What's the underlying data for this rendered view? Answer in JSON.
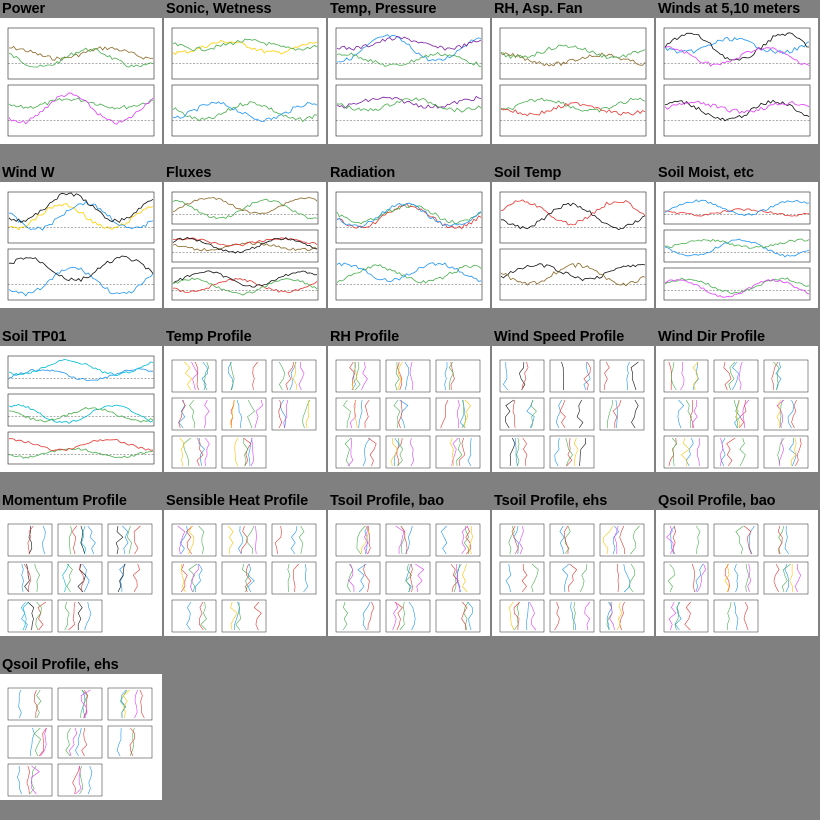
{
  "tiles": [
    {
      "title": "Power",
      "kind": "ts",
      "panels": 2,
      "colors": [
        "#8a6a2a",
        "#4caf50",
        "#e040fb",
        "#2196f3"
      ]
    },
    {
      "title": "Sonic, Wetness",
      "kind": "ts",
      "panels": 2,
      "colors": [
        "#ffd000",
        "#4caf50",
        "#2196f3",
        "#e53935"
      ]
    },
    {
      "title": "Temp, Pressure",
      "kind": "ts",
      "panels": 2,
      "colors": [
        "#2196f3",
        "#7b1fa2",
        "#4caf50",
        "#e53935"
      ]
    },
    {
      "title": "RH, Asp. Fan",
      "kind": "ts",
      "panels": 2,
      "colors": [
        "#8a6a2a",
        "#4caf50",
        "#e53935",
        "#2196f3"
      ]
    },
    {
      "title": "Winds at 5,10 meters",
      "kind": "ts",
      "panels": 2,
      "colors": [
        "#2196f3",
        "#111111",
        "#e040fb",
        "#00bcd4"
      ]
    },
    {
      "title": "Wind W",
      "kind": "ts",
      "panels": 2,
      "colors": [
        "#ffd000",
        "#2196f3",
        "#111111",
        "#e53935"
      ]
    },
    {
      "title": "Fluxes",
      "kind": "ts",
      "panels": 3,
      "colors": [
        "#4caf50",
        "#8a6a2a",
        "#e53935",
        "#111111"
      ]
    },
    {
      "title": "Radiation",
      "kind": "ts",
      "panels": 2,
      "colors": [
        "#e53935",
        "#4caf50",
        "#2196f3",
        "#8a6a2a"
      ]
    },
    {
      "title": "Soil Temp",
      "kind": "ts",
      "panels": 2,
      "colors": [
        "#e53935",
        "#111111",
        "#8a6a2a",
        "#00bcd4"
      ]
    },
    {
      "title": "Soil Moist, etc",
      "kind": "ts",
      "panels": 3,
      "colors": [
        "#e53935",
        "#2196f3",
        "#4caf50",
        "#e040fb"
      ]
    },
    {
      "title": "Soil TP01",
      "kind": "ts",
      "panels": 3,
      "colors": [
        "#2196f3",
        "#00bcd4",
        "#4caf50",
        "#e53935"
      ]
    },
    {
      "title": "Temp Profile",
      "kind": "profile",
      "colors": [
        "#2196f3",
        "#e53935",
        "#4caf50",
        "#e040fb",
        "#ffc107"
      ]
    },
    {
      "title": "RH Profile",
      "kind": "profile",
      "colors": [
        "#2196f3",
        "#e53935",
        "#4caf50",
        "#e040fb",
        "#ffc107"
      ]
    },
    {
      "title": "Wind Speed Profile",
      "kind": "profile",
      "colors": [
        "#111111",
        "#2196f3",
        "#e53935",
        "#4caf50",
        "#ffc107"
      ]
    },
    {
      "title": "Wind Dir Profile",
      "kind": "profile",
      "colors": [
        "#e53935",
        "#2196f3",
        "#4caf50",
        "#e040fb",
        "#ffc107"
      ]
    },
    {
      "title": "Momentum Profile",
      "kind": "profile",
      "colors": [
        "#2196f3",
        "#111111",
        "#e53935",
        "#4caf50",
        "#00bcd4"
      ]
    },
    {
      "title": "Sensible Heat Profile",
      "kind": "profile",
      "colors": [
        "#e53935",
        "#2196f3",
        "#4caf50",
        "#ffc107",
        "#e040fb"
      ]
    },
    {
      "title": "Tsoil Profile, bao",
      "kind": "profile",
      "colors": [
        "#2196f3",
        "#4caf50",
        "#e53935",
        "#e040fb",
        "#ffc107"
      ]
    },
    {
      "title": "Tsoil Profile, ehs",
      "kind": "profile",
      "colors": [
        "#2196f3",
        "#4caf50",
        "#e53935",
        "#e040fb",
        "#ffc107"
      ]
    },
    {
      "title": "Qsoil Profile, bao",
      "kind": "profile",
      "colors": [
        "#2196f3",
        "#4caf50",
        "#e53935",
        "#e040fb",
        "#ffc107"
      ]
    },
    {
      "title": "Qsoil Profile, ehs",
      "kind": "profile",
      "colors": [
        "#2196f3",
        "#4caf50",
        "#e53935",
        "#e040fb",
        "#ffc107"
      ]
    }
  ]
}
